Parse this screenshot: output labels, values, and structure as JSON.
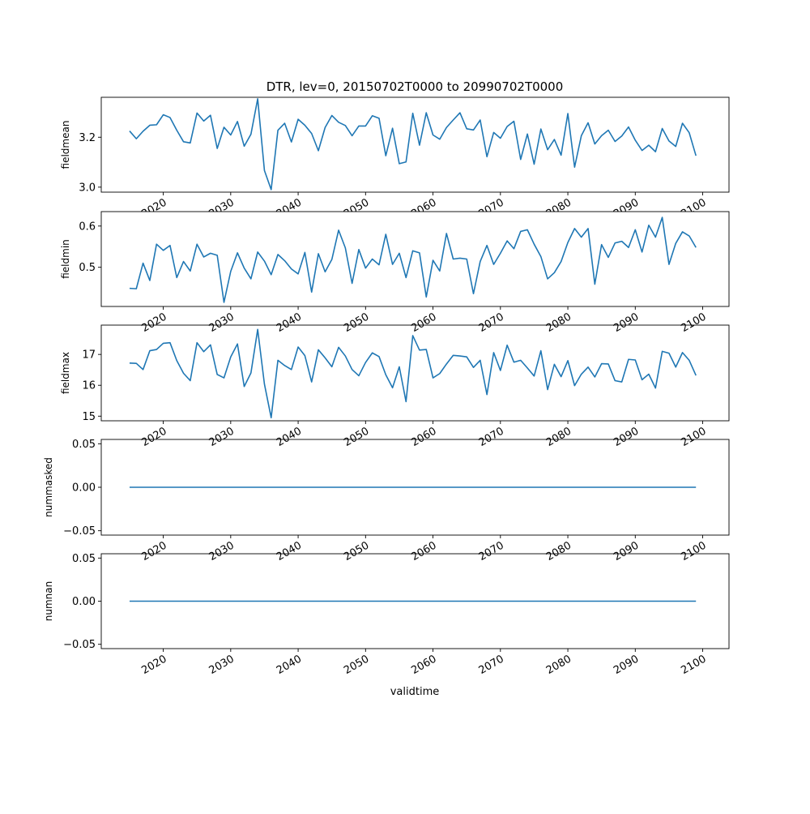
{
  "chart_data": {
    "title": "DTR, lev=0, 20150702T0000 to 20990702T0000",
    "xlabel": "validtime",
    "type": "line",
    "x_start_year": 2015,
    "x_end_year": 2099,
    "xlim": [
      2010.8,
      2103.9
    ],
    "xticks": [
      2020,
      2030,
      2040,
      2050,
      2060,
      2070,
      2080,
      2090,
      2100
    ],
    "line_color": "#1f77b4",
    "panels": [
      {
        "ylabel": "fieldmean",
        "ylim": [
          2.98,
          3.36
        ],
        "yticks": [
          "3.0",
          "3.2"
        ],
        "yticks_values": [
          3.0,
          3.2
        ],
        "values": [
          3.225,
          3.194,
          3.224,
          3.248,
          3.25,
          3.29,
          3.279,
          3.228,
          3.182,
          3.177,
          3.297,
          3.265,
          3.288,
          3.155,
          3.24,
          3.209,
          3.263,
          3.164,
          3.212,
          3.354,
          3.067,
          2.99,
          3.228,
          3.256,
          3.181,
          3.272,
          3.248,
          3.215,
          3.146,
          3.239,
          3.287,
          3.26,
          3.247,
          3.206,
          3.245,
          3.245,
          3.286,
          3.276,
          3.126,
          3.236,
          3.094,
          3.101,
          3.296,
          3.168,
          3.298,
          3.209,
          3.192,
          3.239,
          3.269,
          3.298,
          3.234,
          3.229,
          3.269,
          3.122,
          3.219,
          3.196,
          3.243,
          3.264,
          3.111,
          3.213,
          3.092,
          3.233,
          3.15,
          3.191,
          3.128,
          3.295,
          3.08,
          3.206,
          3.258,
          3.173,
          3.206,
          3.228,
          3.183,
          3.205,
          3.241,
          3.188,
          3.147,
          3.168,
          3.142,
          3.235,
          3.185,
          3.163,
          3.256,
          3.218,
          3.126
        ]
      },
      {
        "ylabel": "fieldmin",
        "ylim": [
          0.405,
          0.635
        ],
        "yticks": [
          "0.5",
          "0.6"
        ],
        "yticks_values": [
          0.5,
          0.6
        ],
        "values": [
          0.449,
          0.448,
          0.51,
          0.468,
          0.556,
          0.541,
          0.553,
          0.475,
          0.514,
          0.491,
          0.556,
          0.525,
          0.534,
          0.529,
          0.415,
          0.49,
          0.535,
          0.498,
          0.472,
          0.537,
          0.515,
          0.482,
          0.531,
          0.516,
          0.496,
          0.484,
          0.536,
          0.44,
          0.533,
          0.489,
          0.519,
          0.59,
          0.547,
          0.461,
          0.543,
          0.498,
          0.52,
          0.506,
          0.58,
          0.507,
          0.534,
          0.475,
          0.54,
          0.535,
          0.428,
          0.517,
          0.491,
          0.582,
          0.52,
          0.522,
          0.52,
          0.436,
          0.514,
          0.553,
          0.507,
          0.534,
          0.564,
          0.545,
          0.587,
          0.591,
          0.556,
          0.526,
          0.472,
          0.487,
          0.514,
          0.56,
          0.594,
          0.573,
          0.594,
          0.459,
          0.555,
          0.524,
          0.559,
          0.563,
          0.548,
          0.591,
          0.537,
          0.602,
          0.573,
          0.621,
          0.507,
          0.558,
          0.586,
          0.576,
          0.548
        ]
      },
      {
        "ylabel": "fieldmax",
        "ylim": [
          14.85,
          17.95
        ],
        "yticks": [
          "15",
          "16",
          "17"
        ],
        "yticks_values": [
          15,
          16,
          17
        ],
        "values": [
          16.72,
          16.71,
          16.51,
          17.12,
          17.16,
          17.36,
          17.38,
          16.8,
          16.39,
          16.15,
          17.38,
          17.09,
          17.31,
          16.35,
          16.24,
          16.92,
          17.34,
          15.96,
          16.4,
          17.81,
          16.04,
          14.95,
          16.81,
          16.64,
          16.51,
          17.24,
          16.96,
          16.11,
          17.15,
          16.89,
          16.6,
          17.23,
          16.95,
          16.51,
          16.31,
          16.74,
          17.05,
          16.93,
          16.34,
          15.92,
          16.6,
          15.47,
          17.61,
          17.14,
          17.16,
          16.24,
          16.38,
          16.69,
          16.97,
          16.95,
          16.92,
          16.58,
          16.81,
          15.7,
          17.06,
          16.48,
          17.3,
          16.75,
          16.81,
          16.56,
          16.3,
          17.12,
          15.86,
          16.68,
          16.28,
          16.8,
          15.99,
          16.36,
          16.59,
          16.27,
          16.7,
          16.69,
          16.15,
          16.11,
          16.84,
          16.82,
          16.18,
          16.36,
          15.91,
          17.1,
          17.04,
          16.59,
          17.06,
          16.81,
          16.32
        ]
      },
      {
        "ylabel": "nummasked",
        "ylim": [
          -0.055,
          0.055
        ],
        "yticks": [
          "−0.05",
          "0.00",
          "0.05"
        ],
        "yticks_values": [
          -0.05,
          0.0,
          0.05
        ],
        "values": [
          0,
          0,
          0,
          0,
          0,
          0,
          0,
          0,
          0,
          0,
          0,
          0,
          0,
          0,
          0,
          0,
          0,
          0,
          0,
          0,
          0,
          0,
          0,
          0,
          0,
          0,
          0,
          0,
          0,
          0,
          0,
          0,
          0,
          0,
          0,
          0,
          0,
          0,
          0,
          0,
          0,
          0,
          0,
          0,
          0,
          0,
          0,
          0,
          0,
          0,
          0,
          0,
          0,
          0,
          0,
          0,
          0,
          0,
          0,
          0,
          0,
          0,
          0,
          0,
          0,
          0,
          0,
          0,
          0,
          0,
          0,
          0,
          0,
          0,
          0,
          0,
          0,
          0,
          0,
          0,
          0,
          0,
          0,
          0,
          0
        ]
      },
      {
        "ylabel": "numnan",
        "ylim": [
          -0.055,
          0.055
        ],
        "yticks": [
          "−0.05",
          "0.00",
          "0.05"
        ],
        "yticks_values": [
          -0.05,
          0.0,
          0.05
        ],
        "values": [
          0,
          0,
          0,
          0,
          0,
          0,
          0,
          0,
          0,
          0,
          0,
          0,
          0,
          0,
          0,
          0,
          0,
          0,
          0,
          0,
          0,
          0,
          0,
          0,
          0,
          0,
          0,
          0,
          0,
          0,
          0,
          0,
          0,
          0,
          0,
          0,
          0,
          0,
          0,
          0,
          0,
          0,
          0,
          0,
          0,
          0,
          0,
          0,
          0,
          0,
          0,
          0,
          0,
          0,
          0,
          0,
          0,
          0,
          0,
          0,
          0,
          0,
          0,
          0,
          0,
          0,
          0,
          0,
          0,
          0,
          0,
          0,
          0,
          0,
          0,
          0,
          0,
          0,
          0,
          0,
          0,
          0,
          0,
          0,
          0
        ]
      }
    ]
  }
}
